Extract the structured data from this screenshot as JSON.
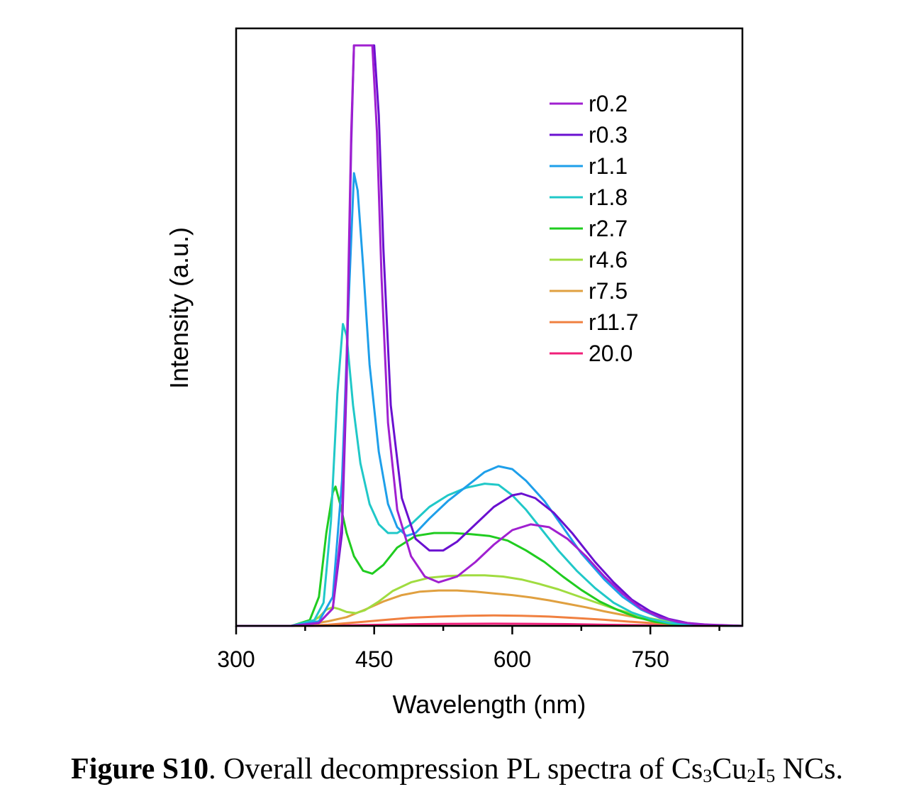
{
  "chart_data": {
    "type": "line",
    "xlabel": "Wavelength (nm)",
    "ylabel": "Intensity (a.u.)",
    "xlim": [
      300,
      850
    ],
    "ylim": [
      0,
      100
    ],
    "x_ticks": [
      300,
      450,
      600,
      750
    ],
    "y_ticks_shown": false,
    "grid": false,
    "legend_position": "top-right",
    "series": [
      {
        "name": "r0.2",
        "color": "#A020D0",
        "points": [
          [
            300,
            0
          ],
          [
            360,
            0
          ],
          [
            390,
            0.5
          ],
          [
            405,
            3
          ],
          [
            415,
            18
          ],
          [
            420,
            45
          ],
          [
            425,
            85
          ],
          [
            428,
            100
          ],
          [
            448,
            100
          ],
          [
            453,
            85
          ],
          [
            458,
            60
          ],
          [
            465,
            35
          ],
          [
            475,
            20
          ],
          [
            490,
            12
          ],
          [
            505,
            8.5
          ],
          [
            520,
            7.5
          ],
          [
            540,
            8.5
          ],
          [
            560,
            11
          ],
          [
            580,
            14
          ],
          [
            600,
            16.5
          ],
          [
            620,
            17.5
          ],
          [
            640,
            17
          ],
          [
            660,
            15
          ],
          [
            680,
            12
          ],
          [
            700,
            8.5
          ],
          [
            720,
            5.5
          ],
          [
            740,
            3
          ],
          [
            760,
            1.5
          ],
          [
            780,
            0.7
          ],
          [
            800,
            0.3
          ],
          [
            850,
            0
          ]
        ]
      },
      {
        "name": "r0.3",
        "color": "#6A10D0",
        "points": [
          [
            300,
            0
          ],
          [
            360,
            0
          ],
          [
            390,
            0.5
          ],
          [
            405,
            3
          ],
          [
            415,
            16
          ],
          [
            420,
            42
          ],
          [
            425,
            83
          ],
          [
            428,
            100
          ],
          [
            450,
            100
          ],
          [
            455,
            88
          ],
          [
            460,
            65
          ],
          [
            468,
            38
          ],
          [
            480,
            22
          ],
          [
            495,
            15
          ],
          [
            510,
            13
          ],
          [
            525,
            13
          ],
          [
            540,
            14.5
          ],
          [
            560,
            17.5
          ],
          [
            580,
            20.5
          ],
          [
            600,
            22.5
          ],
          [
            610,
            22.8
          ],
          [
            625,
            22
          ],
          [
            645,
            19.5
          ],
          [
            665,
            16
          ],
          [
            690,
            11
          ],
          [
            710,
            7.5
          ],
          [
            730,
            4.5
          ],
          [
            750,
            2.5
          ],
          [
            770,
            1.2
          ],
          [
            790,
            0.5
          ],
          [
            820,
            0.1
          ],
          [
            850,
            0
          ]
        ]
      },
      {
        "name": "r1.1",
        "color": "#1E9FEA",
        "points": [
          [
            300,
            0
          ],
          [
            360,
            0
          ],
          [
            390,
            0.8
          ],
          [
            405,
            5
          ],
          [
            415,
            25
          ],
          [
            422,
            55
          ],
          [
            428,
            78
          ],
          [
            432,
            75
          ],
          [
            438,
            62
          ],
          [
            445,
            45
          ],
          [
            455,
            30
          ],
          [
            465,
            21
          ],
          [
            475,
            17
          ],
          [
            485,
            15.5
          ],
          [
            495,
            16
          ],
          [
            510,
            18.5
          ],
          [
            530,
            21.5
          ],
          [
            550,
            24
          ],
          [
            570,
            26.5
          ],
          [
            585,
            27.5
          ],
          [
            600,
            27
          ],
          [
            615,
            25
          ],
          [
            635,
            21.5
          ],
          [
            655,
            17
          ],
          [
            675,
            12.5
          ],
          [
            700,
            8
          ],
          [
            720,
            5
          ],
          [
            740,
            2.8
          ],
          [
            760,
            1.4
          ],
          [
            780,
            0.6
          ],
          [
            800,
            0.2
          ],
          [
            850,
            0
          ]
        ]
      },
      {
        "name": "r1.8",
        "color": "#20C8C8",
        "points": [
          [
            300,
            0
          ],
          [
            360,
            0
          ],
          [
            385,
            1
          ],
          [
            395,
            4
          ],
          [
            403,
            18
          ],
          [
            410,
            40
          ],
          [
            416,
            52
          ],
          [
            420,
            50
          ],
          [
            427,
            38
          ],
          [
            435,
            28
          ],
          [
            445,
            21
          ],
          [
            455,
            17.5
          ],
          [
            465,
            16
          ],
          [
            475,
            16
          ],
          [
            490,
            17.5
          ],
          [
            510,
            20.5
          ],
          [
            530,
            22.5
          ],
          [
            550,
            23.8
          ],
          [
            570,
            24.5
          ],
          [
            585,
            24.3
          ],
          [
            600,
            22.5
          ],
          [
            615,
            20
          ],
          [
            630,
            17
          ],
          [
            650,
            13
          ],
          [
            670,
            9.5
          ],
          [
            690,
            6.5
          ],
          [
            710,
            4
          ],
          [
            730,
            2.3
          ],
          [
            750,
            1.2
          ],
          [
            770,
            0.5
          ],
          [
            800,
            0.1
          ],
          [
            850,
            0
          ]
        ]
      },
      {
        "name": "r2.7",
        "color": "#20CC20",
        "points": [
          [
            300,
            0
          ],
          [
            360,
            0
          ],
          [
            380,
            1
          ],
          [
            390,
            5
          ],
          [
            398,
            16
          ],
          [
            405,
            23
          ],
          [
            408,
            24
          ],
          [
            413,
            21
          ],
          [
            420,
            16
          ],
          [
            428,
            12
          ],
          [
            438,
            9.5
          ],
          [
            448,
            9
          ],
          [
            460,
            10.5
          ],
          [
            475,
            13.5
          ],
          [
            495,
            15.5
          ],
          [
            515,
            16
          ],
          [
            535,
            16
          ],
          [
            555,
            15.8
          ],
          [
            575,
            15.5
          ],
          [
            595,
            14.7
          ],
          [
            615,
            13
          ],
          [
            635,
            11
          ],
          [
            655,
            8.5
          ],
          [
            675,
            6.2
          ],
          [
            695,
            4.2
          ],
          [
            715,
            2.7
          ],
          [
            735,
            1.5
          ],
          [
            755,
            0.7
          ],
          [
            780,
            0.2
          ],
          [
            850,
            0
          ]
        ]
      },
      {
        "name": "r4.6",
        "color": "#A0DC40",
        "points": [
          [
            300,
            0
          ],
          [
            360,
            0
          ],
          [
            380,
            0.5
          ],
          [
            390,
            1.5
          ],
          [
            398,
            2.8
          ],
          [
            405,
            3.2
          ],
          [
            412,
            2.9
          ],
          [
            420,
            2.4
          ],
          [
            430,
            2.2
          ],
          [
            440,
            2.7
          ],
          [
            455,
            4.2
          ],
          [
            470,
            6
          ],
          [
            490,
            7.5
          ],
          [
            510,
            8.3
          ],
          [
            530,
            8.6
          ],
          [
            550,
            8.7
          ],
          [
            570,
            8.7
          ],
          [
            590,
            8.5
          ],
          [
            610,
            8
          ],
          [
            630,
            7.2
          ],
          [
            650,
            6.3
          ],
          [
            670,
            5.2
          ],
          [
            690,
            4.1
          ],
          [
            710,
            3
          ],
          [
            730,
            2.1
          ],
          [
            750,
            1.3
          ],
          [
            770,
            0.7
          ],
          [
            790,
            0.3
          ],
          [
            820,
            0.1
          ],
          [
            850,
            0
          ]
        ]
      },
      {
        "name": "r7.5",
        "color": "#E0A040",
        "points": [
          [
            300,
            0
          ],
          [
            360,
            0
          ],
          [
            380,
            0.3
          ],
          [
            400,
            0.8
          ],
          [
            420,
            1.5
          ],
          [
            440,
            2.8
          ],
          [
            460,
            4.2
          ],
          [
            480,
            5.3
          ],
          [
            500,
            5.9
          ],
          [
            520,
            6.1
          ],
          [
            540,
            6.1
          ],
          [
            560,
            5.9
          ],
          [
            580,
            5.6
          ],
          [
            600,
            5.3
          ],
          [
            620,
            4.9
          ],
          [
            640,
            4.4
          ],
          [
            660,
            3.8
          ],
          [
            680,
            3.2
          ],
          [
            700,
            2.5
          ],
          [
            720,
            1.9
          ],
          [
            740,
            1.3
          ],
          [
            760,
            0.8
          ],
          [
            780,
            0.4
          ],
          [
            800,
            0.2
          ],
          [
            850,
            0
          ]
        ]
      },
      {
        "name": "r11.7",
        "color": "#F08040",
        "points": [
          [
            300,
            0
          ],
          [
            370,
            0
          ],
          [
            400,
            0.2
          ],
          [
            430,
            0.6
          ],
          [
            460,
            1
          ],
          [
            490,
            1.4
          ],
          [
            520,
            1.6
          ],
          [
            550,
            1.75
          ],
          [
            580,
            1.8
          ],
          [
            610,
            1.75
          ],
          [
            640,
            1.6
          ],
          [
            670,
            1.35
          ],
          [
            700,
            1.05
          ],
          [
            730,
            0.7
          ],
          [
            760,
            0.4
          ],
          [
            790,
            0.2
          ],
          [
            820,
            0.05
          ],
          [
            850,
            0
          ]
        ]
      },
      {
        "name": "20.0",
        "color": "#F0207A",
        "points": [
          [
            300,
            0
          ],
          [
            380,
            0
          ],
          [
            420,
            0.1
          ],
          [
            460,
            0.2
          ],
          [
            500,
            0.3
          ],
          [
            540,
            0.35
          ],
          [
            580,
            0.38
          ],
          [
            620,
            0.35
          ],
          [
            660,
            0.3
          ],
          [
            700,
            0.2
          ],
          [
            740,
            0.12
          ],
          [
            780,
            0.05
          ],
          [
            850,
            0
          ]
        ]
      }
    ]
  },
  "caption": {
    "label": "Figure S10",
    "text_before": ". Overall decompression PL spectra of Cs",
    "sub1": "3",
    "mid1": "Cu",
    "sub2": "2",
    "mid2": "I",
    "sub3": "5",
    "text_after": " NCs."
  }
}
